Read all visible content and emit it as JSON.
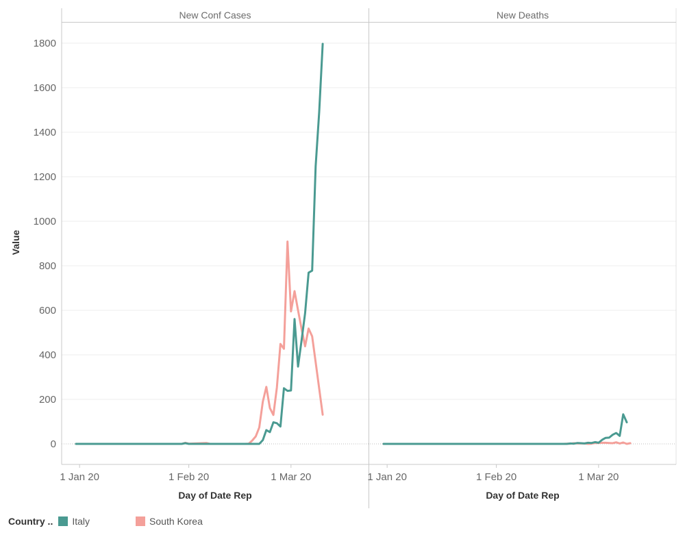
{
  "chart_data": {
    "type": "line",
    "ylabel": "Value",
    "ylim": [
      -90,
      1900
    ],
    "yticks": [
      0,
      200,
      400,
      600,
      800,
      1000,
      1200,
      1400,
      1600,
      1800
    ],
    "xlabel": "Day of Date Rep",
    "xticks": [
      "1 Jan 20",
      "1 Feb 20",
      "1 Mar 20"
    ],
    "xlim": [
      "2019-12-31",
      "2020-03-23"
    ],
    "panels": [
      {
        "title": "New Conf Cases",
        "series": [
          {
            "name": "Italy",
            "color": "#4a9a91",
            "points": [
              [
                "2019-12-31",
                0
              ],
              [
                "2020-01-30",
                0
              ],
              [
                "2020-01-31",
                3
              ],
              [
                "2020-02-01",
                0
              ],
              [
                "2020-02-20",
                0
              ],
              [
                "2020-02-21",
                0
              ],
              [
                "2020-02-22",
                17
              ],
              [
                "2020-02-23",
                62
              ],
              [
                "2020-02-24",
                53
              ],
              [
                "2020-02-25",
                97
              ],
              [
                "2020-02-26",
                93
              ],
              [
                "2020-02-27",
                78
              ],
              [
                "2020-02-28",
                250
              ],
              [
                "2020-02-29",
                238
              ],
              [
                "2020-03-01",
                240
              ],
              [
                "2020-03-02",
                561
              ],
              [
                "2020-03-03",
                347
              ],
              [
                "2020-03-04",
                466
              ],
              [
                "2020-03-05",
                587
              ],
              [
                "2020-03-06",
                769
              ],
              [
                "2020-03-07",
                778
              ],
              [
                "2020-03-08",
                1247
              ],
              [
                "2020-03-09",
                1492
              ],
              [
                "2020-03-10",
                1797
              ]
            ]
          },
          {
            "name": "South Korea",
            "color": "#f4a09a",
            "points": [
              [
                "2019-12-31",
                0
              ],
              [
                "2020-01-30",
                0
              ],
              [
                "2020-01-31",
                5
              ],
              [
                "2020-02-01",
                1
              ],
              [
                "2020-02-06",
                4
              ],
              [
                "2020-02-07",
                0
              ],
              [
                "2020-02-17",
                0
              ],
              [
                "2020-02-18",
                1
              ],
              [
                "2020-02-19",
                15
              ],
              [
                "2020-02-20",
                34
              ],
              [
                "2020-02-21",
                74
              ],
              [
                "2020-02-22",
                190
              ],
              [
                "2020-02-23",
                256
              ],
              [
                "2020-02-24",
                161
              ],
              [
                "2020-02-25",
                130
              ],
              [
                "2020-02-26",
                253
              ],
              [
                "2020-02-27",
                449
              ],
              [
                "2020-02-28",
                427
              ],
              [
                "2020-02-29",
                909
              ],
              [
                "2020-03-01",
                595
              ],
              [
                "2020-03-02",
                686
              ],
              [
                "2020-03-03",
                600
              ],
              [
                "2020-03-04",
                516
              ],
              [
                "2020-03-05",
                438
              ],
              [
                "2020-03-06",
                518
              ],
              [
                "2020-03-07",
                483
              ],
              [
                "2020-03-08",
                367
              ],
              [
                "2020-03-09",
                248
              ],
              [
                "2020-03-10",
                131
              ]
            ]
          }
        ]
      },
      {
        "title": "New Deaths",
        "series": [
          {
            "name": "Italy",
            "color": "#4a9a91",
            "points": [
              [
                "2019-12-31",
                0
              ],
              [
                "2020-02-21",
                0
              ],
              [
                "2020-02-22",
                2
              ],
              [
                "2020-02-23",
                1
              ],
              [
                "2020-02-24",
                4
              ],
              [
                "2020-02-25",
                3
              ],
              [
                "2020-02-26",
                2
              ],
              [
                "2020-02-27",
                5
              ],
              [
                "2020-02-28",
                4
              ],
              [
                "2020-02-29",
                8
              ],
              [
                "2020-03-01",
                5
              ],
              [
                "2020-03-02",
                18
              ],
              [
                "2020-03-03",
                27
              ],
              [
                "2020-03-04",
                28
              ],
              [
                "2020-03-05",
                41
              ],
              [
                "2020-03-06",
                49
              ],
              [
                "2020-03-07",
                36
              ],
              [
                "2020-03-08",
                133
              ],
              [
                "2020-03-09",
                97
              ]
            ]
          },
          {
            "name": "South Korea",
            "color": "#f4a09a",
            "points": [
              [
                "2019-12-31",
                0
              ],
              [
                "2020-02-20",
                0
              ],
              [
                "2020-02-21",
                1
              ],
              [
                "2020-02-22",
                1
              ],
              [
                "2020-02-23",
                3
              ],
              [
                "2020-02-24",
                2
              ],
              [
                "2020-02-25",
                2
              ],
              [
                "2020-02-26",
                2
              ],
              [
                "2020-02-27",
                0
              ],
              [
                "2020-02-28",
                1
              ],
              [
                "2020-02-29",
                4
              ],
              [
                "2020-03-01",
                4
              ],
              [
                "2020-03-02",
                5
              ],
              [
                "2020-03-03",
                5
              ],
              [
                "2020-03-04",
                4
              ],
              [
                "2020-03-05",
                3
              ],
              [
                "2020-03-06",
                7
              ],
              [
                "2020-03-07",
                2
              ],
              [
                "2020-03-08",
                6
              ],
              [
                "2020-03-09",
                0
              ],
              [
                "2020-03-10",
                3
              ]
            ]
          }
        ]
      }
    ]
  },
  "legend": {
    "title": "Country ..",
    "items": [
      {
        "label": "Italy",
        "color": "#4a9a91"
      },
      {
        "label": "South Korea",
        "color": "#f4a09a"
      }
    ]
  }
}
